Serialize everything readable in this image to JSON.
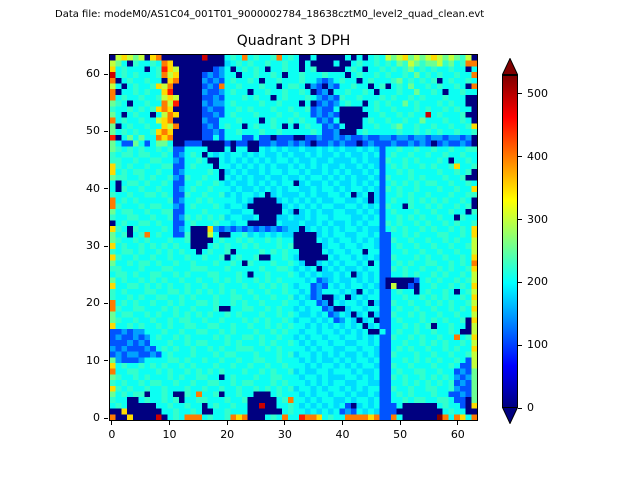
{
  "header": {
    "data_file_label": "Data file: modeM0/AS1C04_001T01_9000002784_18638cztM0_level2_quad_clean.evt"
  },
  "chart_data": {
    "type": "heatmap",
    "title": "Quadrant 3 DPH",
    "xlabel": "",
    "ylabel": "",
    "x_ticks": [
      0,
      10,
      20,
      30,
      40,
      50,
      60
    ],
    "y_ticks": [
      0,
      10,
      20,
      30,
      40,
      50,
      60
    ],
    "x_range": [
      -0.5,
      63.5
    ],
    "y_range": [
      -0.5,
      63.5
    ],
    "grid_on": false,
    "colormap": "jet",
    "colorbar": {
      "ticks": [
        0,
        100,
        200,
        300,
        400,
        500
      ],
      "vmin": 0,
      "vmax": 530,
      "extend": "both",
      "under_color": "#000080",
      "over_color": "#800000",
      "gradient": [
        {
          "pos": 0,
          "color": "#000080"
        },
        {
          "pos": 12.5,
          "color": "#0000ff"
        },
        {
          "pos": 25,
          "color": "#0080ff"
        },
        {
          "pos": 37.5,
          "color": "#00ffff"
        },
        {
          "pos": 50,
          "color": "#80ff80"
        },
        {
          "pos": 62.5,
          "color": "#ffff00"
        },
        {
          "pos": 75,
          "color": "#ff8000"
        },
        {
          "pos": 87.5,
          "color": "#ff0000"
        },
        {
          "pos": 100,
          "color": "#800000"
        }
      ]
    },
    "grid_size": 64,
    "row_order": "rows listed top-to-bottom, i.e. y=63 first, y=0 last; each row is 64 cells, x=0..63 left-to-right",
    "value_map": {
      "0": 0,
      "1": 60,
      "2": 110,
      "3": 150,
      "4": 180,
      "5": 205,
      "6": 225,
      "7": 255,
      "8": 300,
      "9": 350,
      "a": 400,
      "b": 450,
      "c": 490,
      "d": 530
    },
    "rows": [
      [
        "08987809a0",
        "000000c000",
        "565a56556a",
        "5650050000",
        "0505056587",
        "8978789878",
        "7680"
      ],
      [
        "87506556",
        "5a900000",
        "00004565",
        "65565565",
        "50500005",
        "00565565",
        "65768767",
        "786756aa"
      ],
      [
        "95655505",
        "6b980000",
        "00235056",
        "56505565",
        "50560000",
        "05650556",
        "56567565",
        "65565505"
      ],
      [
        "c5656555",
        "6a890000",
        "23235505",
        "56556505",
        "56555655",
        "50565565",
        "65565756",
        "5655655a"
      ],
      [
        "a0565565",
        "509a0000",
        "32325655",
        "65055655",
        "56553235",
        "65505655",
        "56756565",
        "60565565"
      ],
      [
        "85056556",
        "98a00000",
        "232a5565",
        "55655056",
        "65032032",
        "55655056",
        "05657556",
        "5655650a"
      ],
      [
        "a0556565",
        "59b00000",
        "32235655",
        "05565565",
        "56502305",
        "56556505",
        "55655755",
        "65055655"
      ],
      [
        "a5655655",
        "68980000",
        "22325556",
        "56550565",
        "55653232",
        "65565556",
        "56556565",
        "55655500"
      ],
      [
        "76505565",
        "5a8b0000",
        "32335655",
        "55655655",
        "50502323",
        "56550565",
        "65575655",
        "56565500"
      ],
      [
        "65565656",
        "9a900000",
        "23225565",
        "65556556",
        "55623225",
        "00005565",
        "56555656",
        "55656550"
      ],
      [
        "75056550",
        "58a90000",
        "22325655",
        "56555655",
        "65523232",
        "00000556",
        "5565655c",
        "56555600"
      ],
      [
        "a5655655",
        "89a00000",
        "32255565",
        "55056556",
        "56552325",
        "00005655",
        "65565575",
        "55655650"
      ],
      [
        "70565565",
        "598a0000",
        "23256550",
        "56556505",
        "05655232",
        "50005565",
        "56755655",
        "65565569"
      ],
      [
        "75656556",
        "9a900000",
        "22325565",
        "55655655",
        "55565223",
        "00056555",
        "55655656",
        "56556556"
      ],
      [
        "b0575755",
        "a9a00000",
        "22525552",
        "25220222",
        "00223223",
        "23223223",
        "32332332",
        "33233230"
      ],
      [
        "75227525",
        "77500222",
        "00002022",
        "00223223",
        "23202232",
        "32202322",
        "23223232",
        "02322320"
      ],
      [
        "76565655",
        "65622555",
        "50005055",
        "00545454",
        "45445454",
        "54454542",
        "55655655",
        "65565566"
      ],
      [
        "65665665",
        "56523565",
        "05454554",
        "54544545",
        "44545445",
        "45445452",
        "56556556",
        "55655655"
      ],
      [
        "66556556",
        "65532556",
        "50054545",
        "45454554",
        "54454454",
        "44545442",
        "65565655",
        "56505565"
      ],
      [
        "96565565",
        "56622565",
        "55055454",
        "54545445",
        "45454544",
        "54454542",
        "56565565",
        "65569556"
      ],
      [
        "95656655",
        "65523555",
        "56504545",
        "44545545",
        "54544545",
        "45445452",
        "55656555",
        "56556560"
      ],
      [
        "76655656",
        "55632655",
        "65505454",
        "54454454",
        "45455454",
        "54544542",
        "65556565",
        "55655600"
      ],
      [
        "50566565",
        "56522556",
        "55654544",
        "54545455",
        "04544545",
        "44545452",
        "56565656",
        "65565565"
      ],
      [
        "50655655",
        "65523565",
        "56555454",
        "45454545",
        "54454554",
        "54554542",
        "65655655",
        "56556559"
      ],
      [
        "65565566",
        "56522655",
        "65564545",
        "54504544",
        "45454455",
        "45045042",
        "55656556",
        "55565566"
      ],
      [
        "a5656555",
        "55623556",
        "56555545",
        "40000454",
        "54545445",
        "54454042",
        "56556565",
        "65655650"
      ],
      [
        "a6555656",
        "65532565",
        "55654554",
        "00000045",
        "45454554",
        "45545452",
        "65506556",
        "56556560"
      ],
      [
        "75665565",
        "56622555",
        "65555445",
        "50000054",
        "04545445",
        "54454542",
        "56555655",
        "65565506"
      ],
      [
        "65566556",
        "55623656",
        "56564554",
        "45000445",
        "44545545",
        "55445452",
        "55656565",
        "56550655"
      ],
      [
        "05655665",
        "65522565",
        "55655455",
        "00000544",
        "45445454",
        "45454552",
        "65655656",
        "55656556"
      ],
      [
        "96506555",
        "56523500",
        "09323232",
        "32323234",
        "40454545",
        "45545442",
        "56565565",
        "65565659"
      ],
      [
        "756056a5",
        "65522600",
        "08500556",
        "45454544",
        "00004545",
        "54455452",
        "25565655",
        "56655659"
      ],
      [
        "76556565",
        "55655600",
        "00565565",
        "65565655",
        "00005454",
        "55454542",
        "26556556",
        "55656558"
      ],
      [
        "95655656",
        "56565500",
        "05656556",
        "56555656",
        "00000455",
        "45545542",
        "25655655",
        "65565568"
      ],
      [
        "65665655",
        "65656550",
        "56556055",
        "55656565",
        "50000545",
        "54550552",
        "25565565",
        "56556558"
      ],
      [
        "96556556",
        "55655655",
        "65560565",
        "56005565",
        "40000054",
        "55454542",
        "26555656",
        "55655659"
      ],
      [
        "75565665",
        "65565565",
        "55655650",
        "65556556",
        "54004545",
        "45545052",
        "25656556",
        "6556565a"
      ],
      [
        "66555655",
        "56655566",
        "65556555",
        "55655665",
        "45450454",
        "54454552",
        "26565565",
        "56565569"
      ],
      [
        "56656556",
        "65565655",
        "56655565",
        "05565556",
        "54545445",
        "45045452",
        "25565655",
        "65655658"
      ],
      [
        "75655656",
        "56556556",
        "55656565",
        "56565655",
        "55452345",
        "44545452",
        "00000256",
        "56556568"
      ],
      [
        "95566565",
        "65655655",
        "65565556",
        "55656565",
        "45523254",
        "54554542",
        "08002055",
        "65565659"
      ],
      [
        "65655566",
        "55665656",
        "56565655",
        "65565565",
        "54523555",
        "45405452",
        "25655056",
        "55650568"
      ],
      [
        "65565655",
        "66556565",
        "55655665",
        "56556556",
        "45423004",
        "50454552",
        "25565565",
        "65655659"
      ],
      [
        "a5656556",
        "55656556",
        "65655656",
        "55655565",
        "54552305",
        "45545042",
        "26556556",
        "56565568"
      ],
      [
        "a6556655",
        "56565565",
        "55600556",
        "65565655",
        "45455230",
        "04554552",
        "25655655",
        "65565659"
      ],
      [
        "75665565",
        "65565656",
        "56556565",
        "55655656",
        "54454523",
        "54045042",
        "26556565",
        "56556558"
      ],
      [
        "76556556",
        "55656655",
        "65565556",
        "56565565",
        "45545452",
        "35404502",
        "25655565",
        "65655609"
      ],
      [
        "95565655",
        "65655665",
        "56655655",
        "65565656",
        "55454545",
        "45450452",
        "25565656",
        "05565508"
      ],
      [
        "22323355",
        "56556556",
        "65565655",
        "56556565",
        "54554554",
        "54545005",
        "25655655",
        "65565008"
      ],
      [
        "23223235",
        "65565655",
        "55656556",
        "65655655",
        "45455455",
        "45545452",
        "26556565",
        "5655a569"
      ],
      [
        "22232325",
        "55655656",
        "65556565",
        "55656556",
        "54545545",
        "54455452",
        "25565565",
        "65655658"
      ],
      [
        "32322232",
        "56565565",
        "56565566",
        "65565655",
        "55454554",
        "45545542",
        "25656556",
        "55656559"
      ],
      [
        "23233223",
        "25655565",
        "55656655",
        "56555656",
        "45545454",
        "54454542",
        "26555655",
        "65565568"
      ],
      [
        "73222355",
        "55665655",
        "65565565",
        "56655655",
        "54545445",
        "45455452",
        "25565656",
        "56556528"
      ],
      [
        "95655656",
        "56556565",
        "55655655",
        "65565565",
        "55454554",
        "54545542",
        "26556555",
        "65565228"
      ],
      [
        "a5566555",
        "65655656",
        "56565556",
        "55656556",
        "45445545",
        "55454452",
        "25655665",
        "56552327"
      ],
      [
        "76556565",
        "55656556",
        "65505655",
        "56556655",
        "54554544",
        "45545452",
        "26565565",
        "65653237"
      ],
      [
        "65655656",
        "65565565",
        "56655656",
        "65556565",
        "55454545",
        "54455442",
        "25565656",
        "56562327"
      ],
      [
        "96565565",
        "56555655",
        "65565565",
        "56565656",
        "45545455",
        "45454552",
        "26556556",
        "65563227"
      ],
      [
        "75656605",
        "5650065a",
        "55605565",
        "50005655",
        "54545545",
        "54544542",
        "25656555",
        "65522327"
      ],
      [
        "65500565",
        "56560556",
        "65556556",
        "0000056a",
        "55454554",
        "45455452",
        "25565665",
        "56652207"
      ],
      [
        "56500000",
        "55655655",
        "05655655",
        "00c00556",
        "54545454",
        "52045452",
        "22500000",
        "05655209"
      ],
      [
        "00900000",
        "05565565",
        "00556555",
        "00000056",
        "55454545",
        "23254542",
        "22000000",
        "00565500"
      ],
      [
        "a0090000",
        "c0565aaa",
        "56556a9a",
        "000565a5",
        "5baa9565",
        "5aaaa9a2",
        "2a500000",
        "0da5a95a"
      ]
    ]
  }
}
